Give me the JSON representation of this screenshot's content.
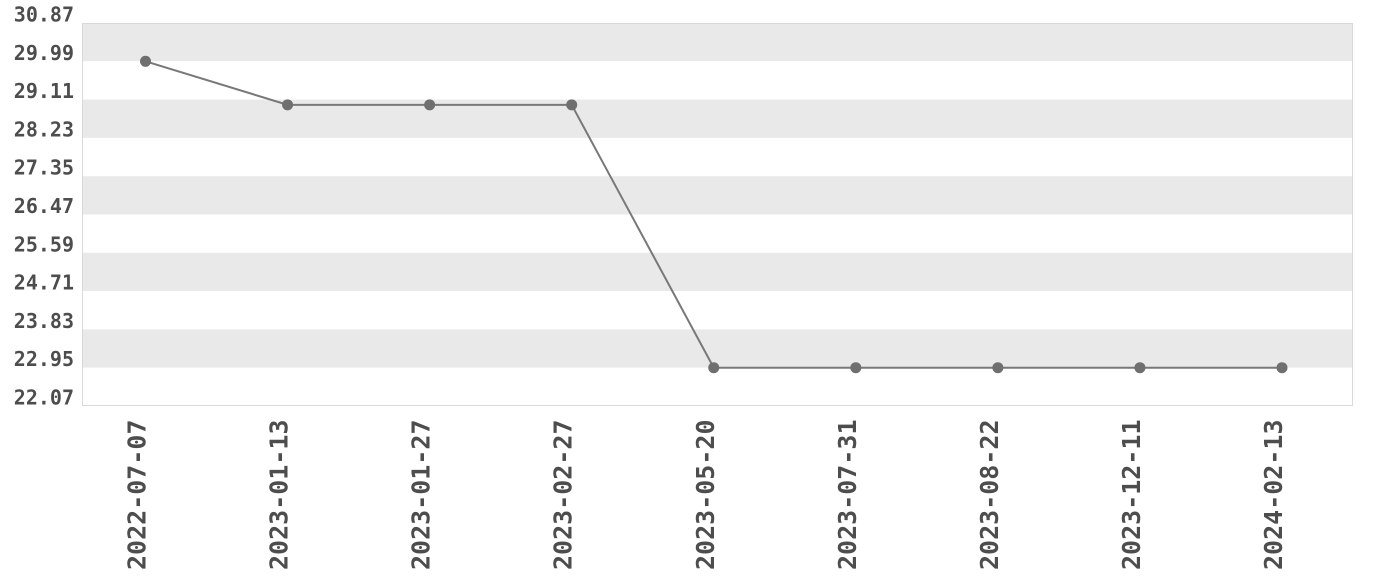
{
  "chart_data": {
    "type": "line",
    "title": "",
    "xlabel": "",
    "ylabel": "",
    "x": [
      "2022-07-07",
      "2023-01-13",
      "2023-01-27",
      "2023-02-27",
      "2023-05-20",
      "2023-07-31",
      "2023-08-22",
      "2023-12-11",
      "2024-02-13"
    ],
    "series": [
      {
        "name": "value",
        "values": [
          29.99,
          28.99,
          28.99,
          28.99,
          22.95,
          22.95,
          22.95,
          22.95,
          22.95
        ]
      }
    ],
    "y_ticks": [
      30.87,
      29.99,
      29.11,
      28.23,
      27.35,
      26.47,
      25.59,
      24.71,
      23.83,
      22.95,
      22.07
    ],
    "ylim": [
      22.07,
      30.87
    ],
    "grid": "alternating-horizontal-bands",
    "legend_position": "none",
    "colors": {
      "line": "#787878",
      "marker": "#6f6f6f",
      "band": "#e9e9e9",
      "band_alt": "#ffffff",
      "tick_text": "#4d4d4d",
      "plot_border": "#d9d9d9",
      "background": "#ffffff"
    }
  }
}
